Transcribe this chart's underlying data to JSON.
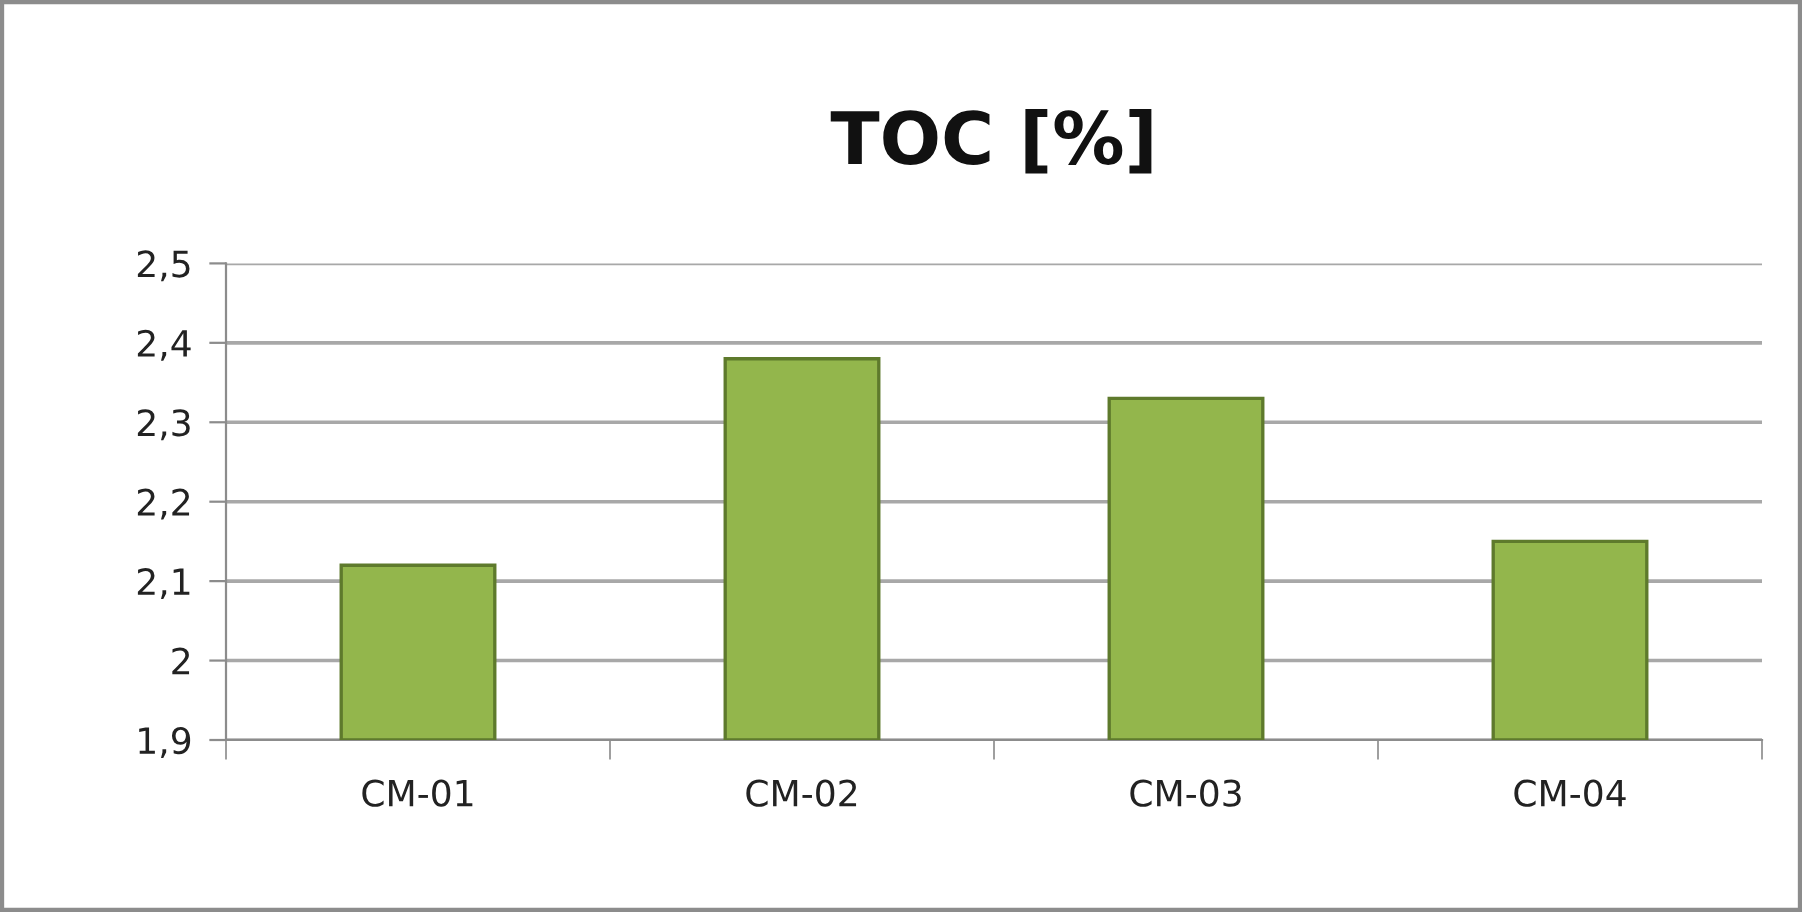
{
  "chart_data": {
    "type": "bar",
    "title": "TOC [%]",
    "categories": [
      "CM-01",
      "CM-02",
      "CM-03",
      "CM-04"
    ],
    "values": [
      2.12,
      2.38,
      2.33,
      2.15
    ],
    "color": "#93b64c",
    "ylim": [
      1.9,
      2.5
    ],
    "yticks": [
      {
        "value": 1.9,
        "label": "1,9"
      },
      2,
      {
        "value": 2.1,
        "label": "2,1"
      },
      {
        "value": 2.2,
        "label": "2,2"
      },
      {
        "value": 2.3,
        "label": "2,3"
      },
      {
        "value": 2.4,
        "label": "2,4"
      },
      {
        "value": 2.5,
        "label": "2,5"
      }
    ],
    "grid": "y",
    "legend": false
  }
}
